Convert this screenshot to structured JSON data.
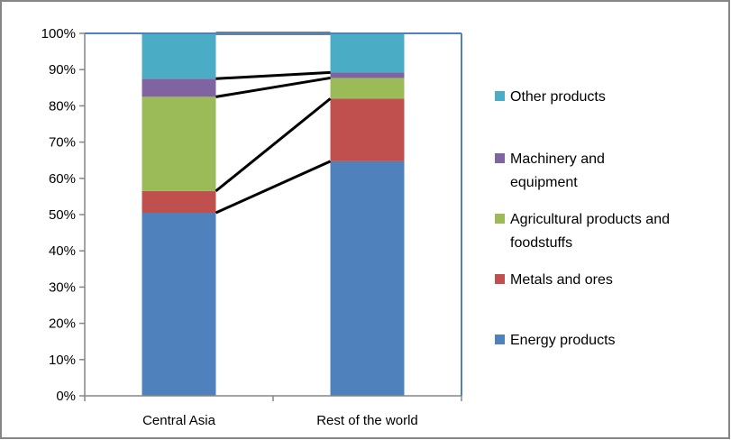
{
  "chart_data": {
    "type": "bar",
    "stacked": true,
    "percent": true,
    "categories": [
      "Central Asia",
      "Rest of the world"
    ],
    "series": [
      {
        "name": "Energy products",
        "color": "#4F81BD",
        "values": [
          50.5,
          64.7
        ]
      },
      {
        "name": "Metals and ores",
        "color": "#C0504D",
        "values": [
          6.0,
          17.3
        ]
      },
      {
        "name": "Agricultural products and foodstuffs",
        "color": "#9BBB59",
        "values": [
          26.0,
          5.7
        ]
      },
      {
        "name": "Machinery and equipment",
        "color": "#8064A2",
        "values": [
          5.0,
          1.5
        ]
      },
      {
        "name": "Other products",
        "color": "#4BACC6",
        "values": [
          12.5,
          10.8
        ]
      }
    ],
    "legend_order": [
      4,
      3,
      2,
      1,
      0
    ],
    "legend_text": [
      [
        "Other products"
      ],
      [
        "Machinery and",
        "equipment"
      ],
      [
        "Agricultural products and",
        "foodstuffs"
      ],
      [
        "Metals and ores"
      ],
      [
        "Energy products"
      ]
    ],
    "yticks": [
      "0%",
      "10%",
      "20%",
      "30%",
      "40%",
      "50%",
      "60%",
      "70%",
      "80%",
      "90%",
      "100%"
    ],
    "ylim": [
      0,
      100
    ],
    "series_lines": true,
    "legend_position": "right"
  }
}
